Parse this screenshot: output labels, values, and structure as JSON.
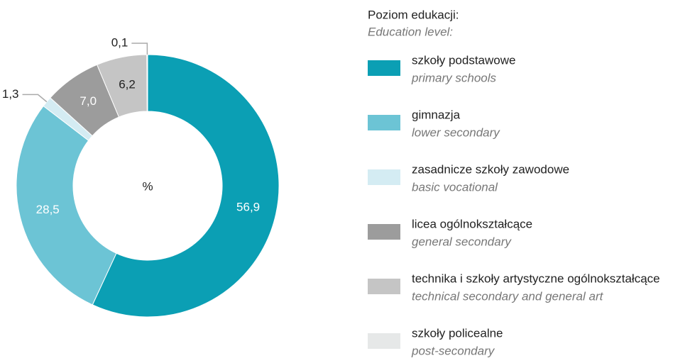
{
  "chart_data": {
    "type": "pie",
    "center_label": "%",
    "legend_title": "Poziom edukacji:",
    "legend_subtitle": "Education level:",
    "categories": [
      "szkoły podstawowe",
      "gimnazja",
      "zasadnicze szkoły zawodowe",
      "licea ogólnokształcące",
      "technika i szkoły artystyczne ogólnokształcące",
      "szkoły policealne"
    ],
    "categories_en": [
      "primary schools",
      "lower secondary",
      "basic vocational",
      "general secondary",
      "technical secondary and general art",
      "post-secondary"
    ],
    "values": [
      56.9,
      28.5,
      1.3,
      7.0,
      6.2,
      0.1
    ],
    "value_labels": [
      "56,9",
      "28,5",
      "1,3",
      "7,0",
      "6,2",
      "0,1"
    ],
    "colors": [
      "#0b9fb4",
      "#6cc4d5",
      "#d4ecf3",
      "#9c9c9c",
      "#c5c5c5",
      "#e6e8e8"
    ]
  }
}
